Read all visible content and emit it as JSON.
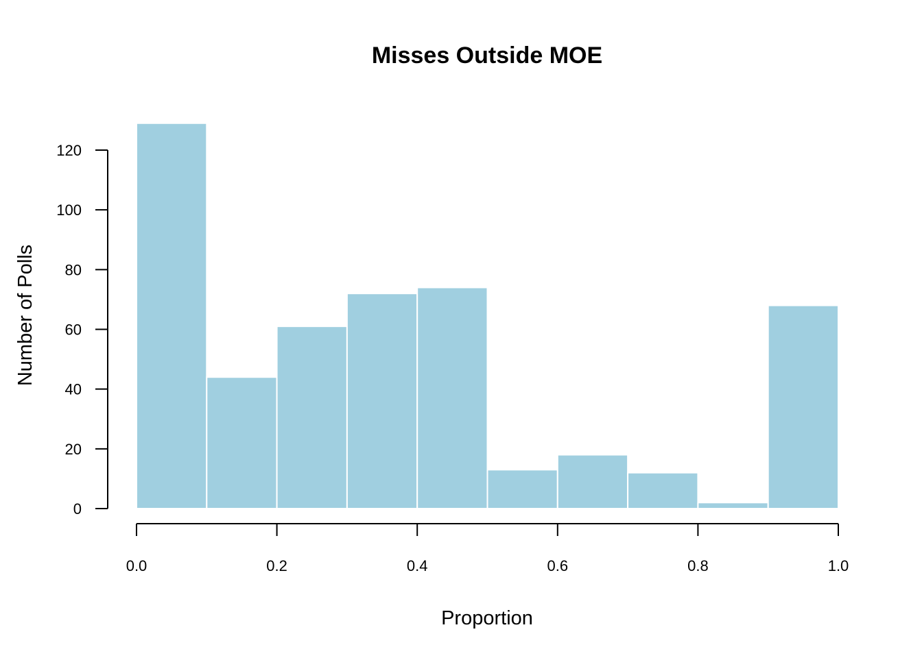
{
  "chart_data": {
    "type": "bar",
    "title": "Misses Outside MOE",
    "xlabel": "Proportion",
    "ylabel": "Number of Polls",
    "bins": [
      {
        "x0": 0.0,
        "x1": 0.1,
        "count": 129
      },
      {
        "x0": 0.1,
        "x1": 0.2,
        "count": 44
      },
      {
        "x0": 0.2,
        "x1": 0.3,
        "count": 61
      },
      {
        "x0": 0.3,
        "x1": 0.4,
        "count": 72
      },
      {
        "x0": 0.4,
        "x1": 0.5,
        "count": 74
      },
      {
        "x0": 0.5,
        "x1": 0.6,
        "count": 13
      },
      {
        "x0": 0.6,
        "x1": 0.7,
        "count": 18
      },
      {
        "x0": 0.7,
        "x1": 0.8,
        "count": 12
      },
      {
        "x0": 0.8,
        "x1": 0.9,
        "count": 2
      },
      {
        "x0": 0.9,
        "x1": 1.0,
        "count": 68
      }
    ],
    "xlim": [
      0.0,
      1.0
    ],
    "ylim": [
      0,
      120
    ],
    "xticks": [
      "0.0",
      "0.2",
      "0.4",
      "0.6",
      "0.8",
      "1.0"
    ],
    "yticks": [
      "0",
      "20",
      "40",
      "60",
      "80",
      "100",
      "120"
    ],
    "bar_color": "#a0cfe0",
    "bar_border_color": "#ffffff",
    "grid": false,
    "legend": "none"
  }
}
